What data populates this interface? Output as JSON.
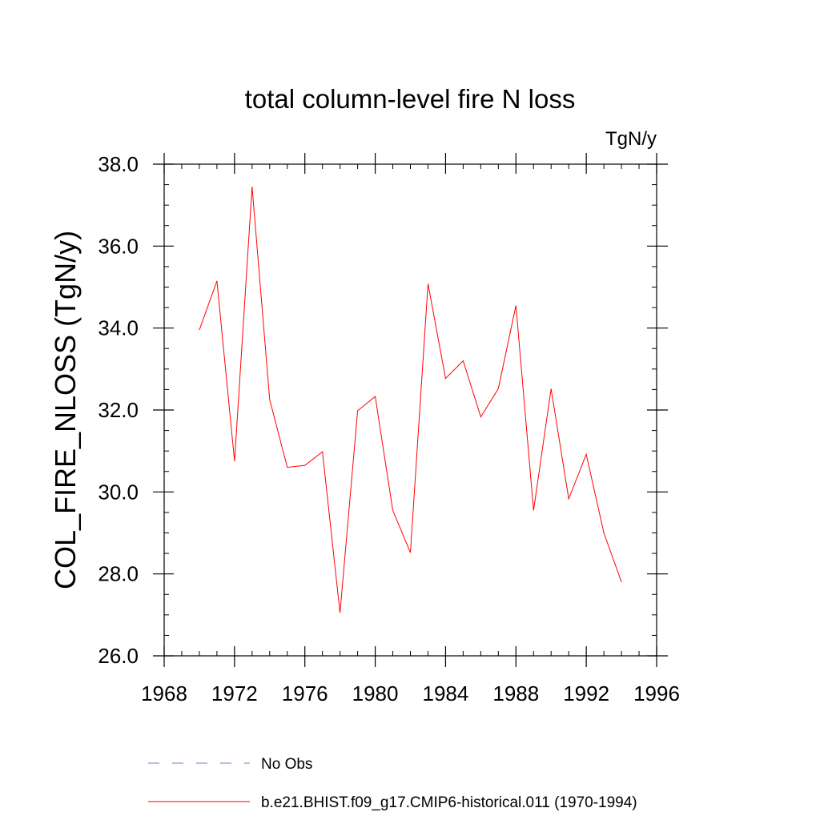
{
  "chart_data": {
    "type": "line",
    "title": "total column-level fire N loss",
    "units_label": "TgN/y",
    "ylabel": "COL_FIRE_NLOSS  (TgN/y)",
    "xlabel": "",
    "xlim": [
      1968,
      1996
    ],
    "ylim": [
      26.0,
      38.0
    ],
    "x_ticks": [
      1968,
      1972,
      1976,
      1980,
      1984,
      1988,
      1992,
      1996
    ],
    "x_tick_labels": [
      "1968",
      "1972",
      "1976",
      "1980",
      "1984",
      "1988",
      "1992",
      "1996"
    ],
    "y_ticks": [
      26.0,
      28.0,
      30.0,
      32.0,
      34.0,
      36.0,
      38.0
    ],
    "y_tick_labels": [
      "26.0",
      "28.0",
      "30.0",
      "32.0",
      "34.0",
      "36.0",
      "38.0"
    ],
    "grid": false,
    "legend_position": "bottom",
    "series": [
      {
        "name": "b.e21.BHIST.f09_g17.CMIP6-historical.011 (1970-1994)",
        "color": "#ff0000",
        "style": "solid",
        "x": [
          1970,
          1971,
          1972,
          1973,
          1974,
          1975,
          1976,
          1977,
          1978,
          1979,
          1980,
          1981,
          1982,
          1983,
          1984,
          1985,
          1986,
          1987,
          1988,
          1989,
          1990,
          1991,
          1992,
          1993,
          1994
        ],
        "values": [
          33.95,
          35.15,
          30.75,
          37.45,
          32.25,
          30.6,
          30.65,
          30.98,
          27.05,
          31.98,
          32.33,
          29.55,
          28.52,
          35.08,
          32.77,
          33.2,
          31.83,
          32.52,
          34.55,
          29.55,
          32.52,
          29.83,
          30.92,
          29.0,
          27.8
        ]
      },
      {
        "name": "No Obs",
        "color": "#7777cc",
        "style": "dashed",
        "x": [],
        "values": []
      }
    ]
  }
}
